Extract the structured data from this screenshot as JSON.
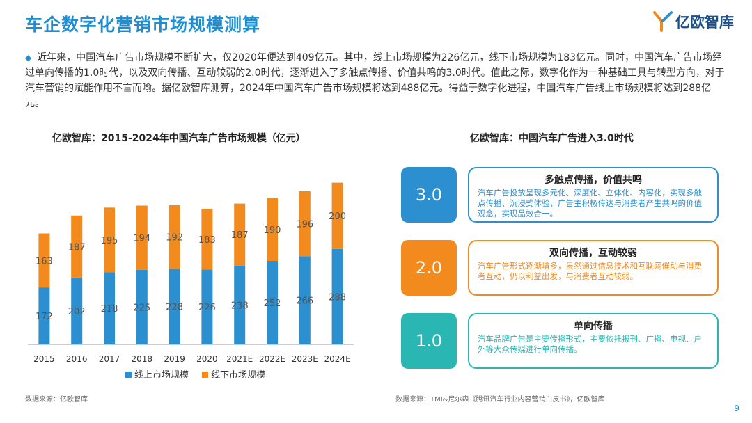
{
  "header": {
    "title": "车企数字化营销市场规模测算",
    "logo_text": "亿欧智库"
  },
  "intro": "近年来，中国汽车广告市场规模不断扩大，仅2020年便达到409亿元。其中，线上市场规模为226亿元，线下市场规模为183亿元。同时，中国汽车广告市场经过单向传播的1.0时代，以及双向传播、互动较弱的2.0时代，逐渐进入了多触点传播、价值共鸣的3.0时代。值此之际，数字化作为一种基础工具与转型方向，对于汽车营销的赋能作用不言而喻。据亿欧智库测算，2024年中国汽车广告市场规模将达到488亿元。得益于数字化进程，中国汽车广告线上市场规模将达到288亿元。",
  "left_title": "亿欧智库：2015-2024年中国汽车广告市场规模（亿元）",
  "right_title": "亿欧智库：中国汽车广告进入3.0时代",
  "chart_data": {
    "type": "bar",
    "stacked": true,
    "categories": [
      "2015",
      "2016",
      "2017",
      "2018",
      "2019",
      "2020",
      "2021E",
      "2022E",
      "2023E",
      "2024E"
    ],
    "series": [
      {
        "name": "线上市场规模",
        "color": "#2b8fd0",
        "values": [
          172,
          202,
          218,
          225,
          228,
          226,
          238,
          252,
          266,
          288
        ]
      },
      {
        "name": "线下市场规模",
        "color": "#f28a1e",
        "values": [
          163,
          187,
          195,
          194,
          192,
          183,
          187,
          190,
          196,
          200
        ]
      }
    ],
    "ylim": [
      0,
      500
    ],
    "legend": "bottom"
  },
  "stages": [
    {
      "label": "3.0",
      "title": "多触点传播，价值共鸣",
      "desc": "汽车广告投放呈现多元化、深度化、立体化、内容化，实现多触点传播、沉浸式体验，广告主积极传达与消费者产生共鸣的价值观念，实现品效合一。"
    },
    {
      "label": "2.0",
      "title": "双向传播，互动较弱",
      "desc": "汽车广告形式逐渐增多，虽然通过信息技术和互联网催动与消费者互动，仍以利益出发，与消费者互动较弱。"
    },
    {
      "label": "1.0",
      "title": "单向传播",
      "desc": "汽车品牌广告是主要传播形式，主要依托报刊、广播、电视、户外等大众传媒进行单向传播。"
    }
  ],
  "sources": {
    "left": "数据来源：亿欧智库",
    "right": "数据来源：TMI&尼尔森《腾讯汽车行业内容营销白皮书》，亿欧智库"
  },
  "page_number": "9"
}
